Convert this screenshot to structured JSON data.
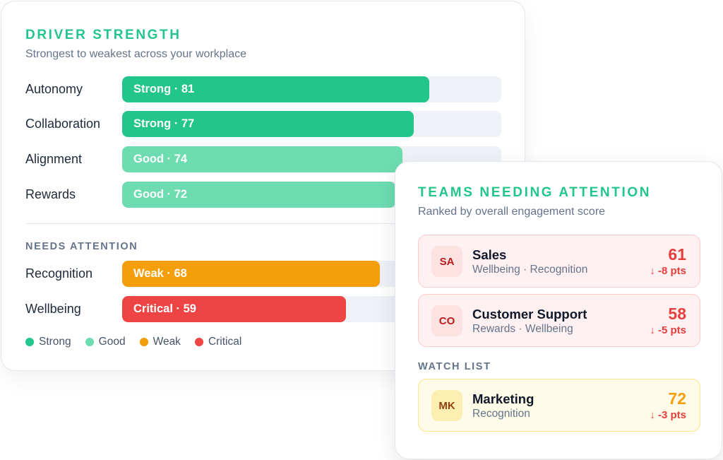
{
  "driver_card": {
    "title": "DRIVER STRENGTH",
    "subtitle": "Strongest to weakest across your workplace",
    "strong_rows": [
      {
        "label": "Autonomy",
        "bar_text": "Strong · 81",
        "score": 81,
        "color": "#22c58a"
      },
      {
        "label": "Collaboration",
        "bar_text": "Strong · 77",
        "score": 77,
        "color": "#22c58a"
      },
      {
        "label": "Alignment",
        "bar_text": "Good · 74",
        "score": 74,
        "color": "#6ddcb1"
      },
      {
        "label": "Rewards",
        "bar_text": "Good · 72",
        "score": 72,
        "color": "#6ddcb1"
      }
    ],
    "needs_attention_label": "NEEDS ATTENTION",
    "attention_rows": [
      {
        "label": "Recognition",
        "bar_text": "Weak · 68",
        "score": 68,
        "color": "#f59e0b"
      },
      {
        "label": "Wellbeing",
        "bar_text": "Critical · 59",
        "score": 59,
        "color": "#ef4444"
      }
    ],
    "legend": [
      {
        "label": "Strong",
        "color": "#22c58a"
      },
      {
        "label": "Good",
        "color": "#6ddcb1"
      },
      {
        "label": "Weak",
        "color": "#f59e0b"
      },
      {
        "label": "Critical",
        "color": "#ef4444"
      }
    ]
  },
  "teams_card": {
    "title": "TEAMS NEEDING ATTENTION",
    "subtitle": "Ranked by overall engagement score",
    "teams": [
      {
        "initials": "SA",
        "name": "Sales",
        "drivers": "Wellbeing · Recognition",
        "score": "61",
        "delta": "↓ -8 pts"
      },
      {
        "initials": "CO",
        "name": "Customer Support",
        "drivers": "Rewards · Wellbeing",
        "score": "58",
        "delta": "↓ -5 pts"
      }
    ],
    "watch_list_label": "WATCH LIST",
    "watch_list": [
      {
        "initials": "MK",
        "name": "Marketing",
        "drivers": "Recognition",
        "score": "72",
        "delta": "↓ -3 pts"
      }
    ]
  }
}
